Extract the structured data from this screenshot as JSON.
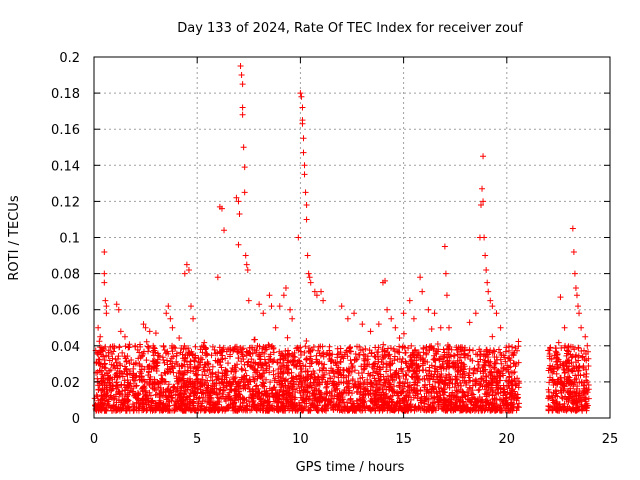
{
  "chart_data": {
    "type": "scatter",
    "title": "Day 133 of 2024, Rate Of TEC Index for receiver zouf",
    "xlabel": "GPS time / hours",
    "ylabel": "ROTI / TECUs",
    "xlim": [
      0,
      25
    ],
    "ylim": [
      0,
      0.2
    ],
    "xticks": [
      0,
      5,
      10,
      15,
      20,
      25
    ],
    "yticks": [
      0,
      0.02,
      0.04,
      0.06,
      0.08,
      0.1,
      0.12,
      0.14,
      0.16,
      0.18,
      0.2
    ],
    "xtick_labels": [
      "0",
      "5",
      "10",
      "15",
      "20",
      "25"
    ],
    "ytick_labels": [
      "0",
      "0.02",
      "0.04",
      "0.06",
      "0.08",
      "0.1",
      "0.12",
      "0.14",
      "0.16",
      "0.18",
      "0.2"
    ],
    "grid": true,
    "marker": "+",
    "marker_color": "#ff0000",
    "series": [
      {
        "name": "ROTI",
        "note": "dense band 0.005-0.045 TECU/s from 0 to 20.6 h, gap 20.6-22.0 h, band again 22.0-24.0 h; representative outlier points listed",
        "points": [
          [
            0.1,
            0.025
          ],
          [
            0.2,
            0.05
          ],
          [
            0.3,
            0.045
          ],
          [
            0.5,
            0.092
          ],
          [
            0.5,
            0.08
          ],
          [
            0.5,
            0.075
          ],
          [
            0.55,
            0.065
          ],
          [
            0.6,
            0.062
          ],
          [
            0.6,
            0.058
          ],
          [
            1.1,
            0.063
          ],
          [
            1.2,
            0.06
          ],
          [
            1.3,
            0.048
          ],
          [
            1.5,
            0.045
          ],
          [
            2.4,
            0.052
          ],
          [
            2.5,
            0.05
          ],
          [
            2.7,
            0.048
          ],
          [
            3.0,
            0.047
          ],
          [
            3.5,
            0.058
          ],
          [
            3.6,
            0.062
          ],
          [
            3.7,
            0.055
          ],
          [
            3.8,
            0.05
          ],
          [
            4.4,
            0.08
          ],
          [
            4.5,
            0.085
          ],
          [
            4.6,
            0.082
          ],
          [
            4.7,
            0.062
          ],
          [
            4.8,
            0.055
          ],
          [
            6.0,
            0.078
          ],
          [
            6.1,
            0.117
          ],
          [
            6.2,
            0.116
          ],
          [
            6.3,
            0.104
          ],
          [
            6.9,
            0.122
          ],
          [
            7.0,
            0.12
          ],
          [
            7.0,
            0.096
          ],
          [
            7.05,
            0.113
          ],
          [
            7.1,
            0.195
          ],
          [
            7.15,
            0.19
          ],
          [
            7.2,
            0.185
          ],
          [
            7.2,
            0.172
          ],
          [
            7.2,
            0.168
          ],
          [
            7.25,
            0.15
          ],
          [
            7.3,
            0.139
          ],
          [
            7.3,
            0.125
          ],
          [
            7.35,
            0.09
          ],
          [
            7.4,
            0.085
          ],
          [
            7.45,
            0.082
          ],
          [
            7.5,
            0.065
          ],
          [
            8.0,
            0.063
          ],
          [
            8.2,
            0.058
          ],
          [
            8.5,
            0.068
          ],
          [
            8.6,
            0.062
          ],
          [
            8.8,
            0.05
          ],
          [
            9.0,
            0.062
          ],
          [
            9.2,
            0.068
          ],
          [
            9.3,
            0.072
          ],
          [
            9.5,
            0.06
          ],
          [
            9.6,
            0.055
          ],
          [
            9.9,
            0.1
          ],
          [
            10.0,
            0.18
          ],
          [
            10.05,
            0.178
          ],
          [
            10.1,
            0.172
          ],
          [
            10.1,
            0.165
          ],
          [
            10.1,
            0.163
          ],
          [
            10.15,
            0.155
          ],
          [
            10.15,
            0.147
          ],
          [
            10.2,
            0.14
          ],
          [
            10.2,
            0.135
          ],
          [
            10.25,
            0.125
          ],
          [
            10.3,
            0.118
          ],
          [
            10.3,
            0.11
          ],
          [
            10.35,
            0.09
          ],
          [
            10.4,
            0.08
          ],
          [
            10.45,
            0.078
          ],
          [
            10.5,
            0.075
          ],
          [
            10.7,
            0.07
          ],
          [
            10.8,
            0.068
          ],
          [
            11.0,
            0.07
          ],
          [
            11.1,
            0.065
          ],
          [
            12.0,
            0.062
          ],
          [
            12.3,
            0.055
          ],
          [
            12.6,
            0.058
          ],
          [
            13.0,
            0.052
          ],
          [
            13.4,
            0.048
          ],
          [
            13.8,
            0.052
          ],
          [
            14.0,
            0.075
          ],
          [
            14.1,
            0.076
          ],
          [
            14.2,
            0.06
          ],
          [
            14.4,
            0.055
          ],
          [
            14.6,
            0.05
          ],
          [
            15.0,
            0.058
          ],
          [
            15.3,
            0.065
          ],
          [
            15.5,
            0.055
          ],
          [
            15.8,
            0.078
          ],
          [
            15.9,
            0.07
          ],
          [
            16.2,
            0.06
          ],
          [
            16.5,
            0.058
          ],
          [
            16.8,
            0.05
          ],
          [
            17.0,
            0.095
          ],
          [
            17.05,
            0.08
          ],
          [
            17.1,
            0.068
          ],
          [
            17.2,
            0.05
          ],
          [
            18.2,
            0.053
          ],
          [
            18.5,
            0.058
          ],
          [
            18.7,
            0.1
          ],
          [
            18.75,
            0.118
          ],
          [
            18.8,
            0.127
          ],
          [
            18.85,
            0.145
          ],
          [
            18.85,
            0.12
          ],
          [
            18.9,
            0.1
          ],
          [
            18.95,
            0.09
          ],
          [
            19.0,
            0.082
          ],
          [
            19.05,
            0.075
          ],
          [
            19.1,
            0.07
          ],
          [
            19.2,
            0.065
          ],
          [
            19.3,
            0.062
          ],
          [
            19.5,
            0.058
          ],
          [
            19.7,
            0.05
          ],
          [
            20.1,
            0.028
          ],
          [
            20.3,
            0.025
          ],
          [
            20.5,
            0.022
          ],
          [
            22.2,
            0.025
          ],
          [
            22.3,
            0.02
          ],
          [
            22.6,
            0.067
          ],
          [
            22.8,
            0.05
          ],
          [
            23.2,
            0.105
          ],
          [
            23.25,
            0.092
          ],
          [
            23.3,
            0.08
          ],
          [
            23.35,
            0.072
          ],
          [
            23.4,
            0.068
          ],
          [
            23.45,
            0.062
          ],
          [
            23.5,
            0.058
          ],
          [
            23.6,
            0.05
          ],
          [
            23.8,
            0.045
          ],
          [
            23.9,
            0.04
          ]
        ]
      }
    ]
  }
}
